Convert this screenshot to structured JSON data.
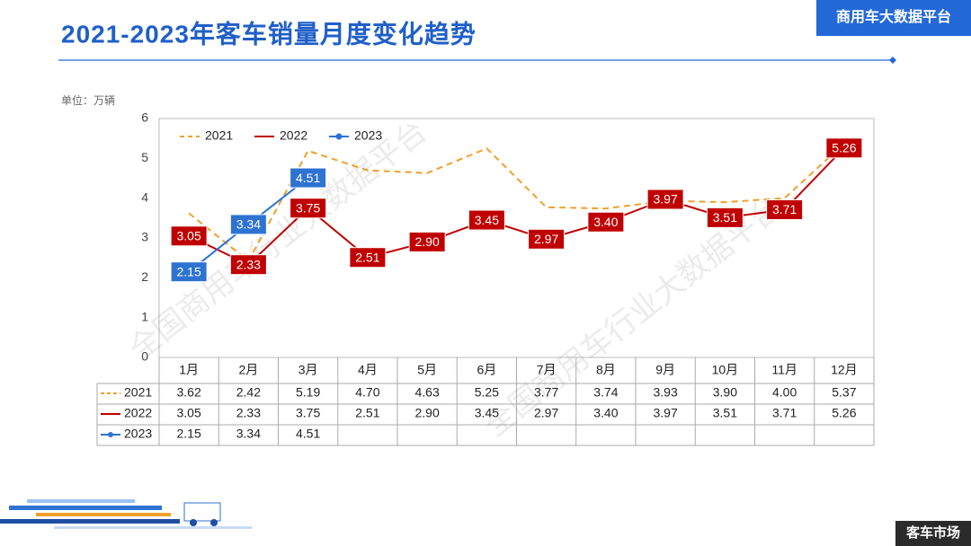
{
  "header": {
    "title": "2021-2023年客车销量月度变化趋势",
    "badge": "商用车大数据平台"
  },
  "footer": {
    "tag": "客车市场"
  },
  "watermark": "全国商用车行业大数据平台",
  "chart_data": {
    "type": "line",
    "unit": "单位：万辆",
    "categories": [
      "1月",
      "2月",
      "3月",
      "4月",
      "5月",
      "6月",
      "7月",
      "8月",
      "9月",
      "10月",
      "11月",
      "12月"
    ],
    "series": [
      {
        "name": "2021",
        "color": "#f0a02a",
        "line_style": "dashed",
        "data_labels": false,
        "marker": "none",
        "values": [
          3.62,
          2.42,
          5.19,
          4.7,
          4.63,
          5.25,
          3.77,
          3.74,
          3.93,
          3.9,
          4.0,
          5.37
        ],
        "value_labels": [
          "3.62",
          "2.42",
          "5.19",
          "4.70",
          "4.63",
          "5.25",
          "3.77",
          "3.74",
          "3.93",
          "3.90",
          "4.00",
          "5.37"
        ]
      },
      {
        "name": "2022",
        "color": "#c00000",
        "line_style": "solid",
        "data_labels": true,
        "marker": "none",
        "values": [
          3.05,
          2.33,
          3.75,
          2.51,
          2.9,
          3.45,
          2.97,
          3.4,
          3.97,
          3.51,
          3.71,
          5.26
        ],
        "value_labels": [
          "3.05",
          "2.33",
          "3.75",
          "2.51",
          "2.90",
          "3.45",
          "2.97",
          "3.40",
          "3.97",
          "3.51",
          "3.71",
          "5.26"
        ]
      },
      {
        "name": "2023",
        "color": "#2e73d2",
        "line_style": "solid",
        "data_labels": true,
        "marker": "circle",
        "values": [
          2.15,
          3.34,
          4.51,
          null,
          null,
          null,
          null,
          null,
          null,
          null,
          null,
          null
        ],
        "value_labels": [
          "2.15",
          "3.34",
          "4.51",
          null,
          null,
          null,
          null,
          null,
          null,
          null,
          null,
          null
        ]
      }
    ],
    "ylim": [
      0,
      6
    ],
    "yticks": [
      0,
      1,
      2,
      3,
      4,
      5,
      6
    ],
    "grid": false,
    "legend": "top-left",
    "data_table": true
  }
}
